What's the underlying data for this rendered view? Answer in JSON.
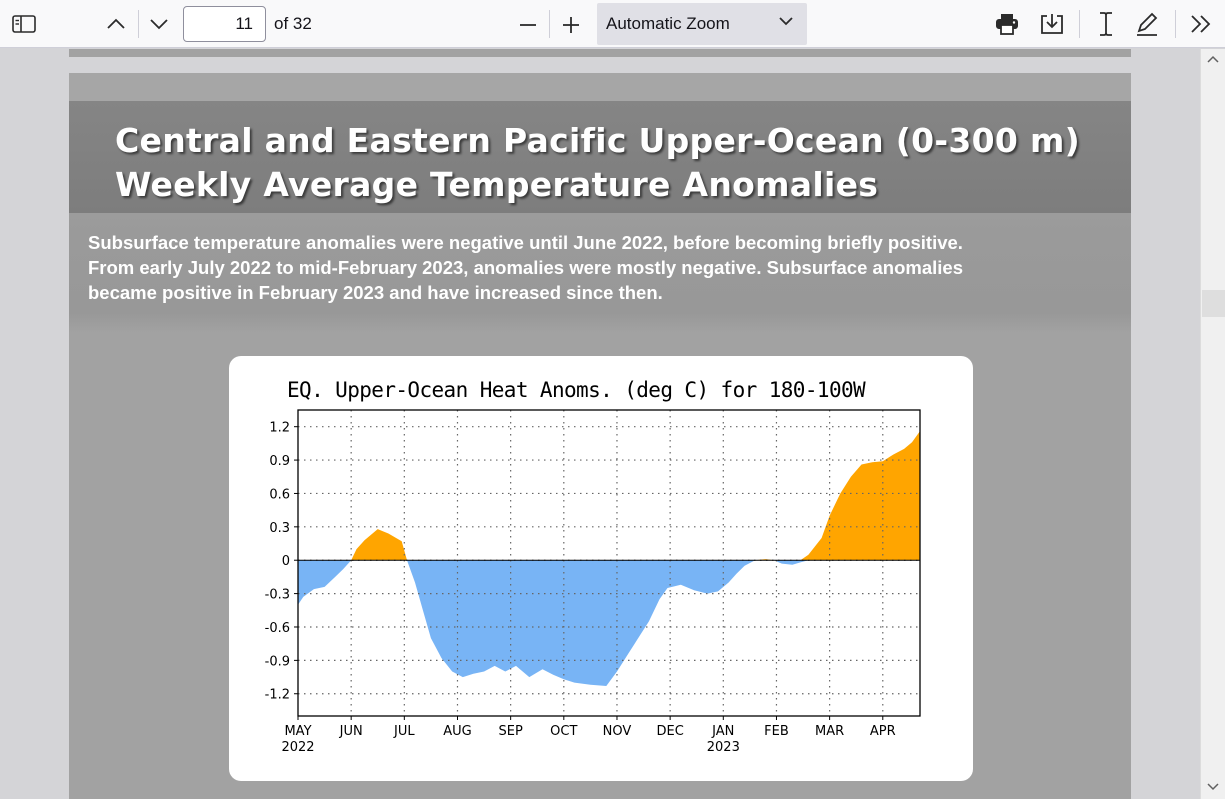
{
  "toolbar": {
    "sidebar_toggle_icon": "sidebar-toggle-icon",
    "page_number": "11",
    "page_total_label": "of 32",
    "zoom_label": "Automatic Zoom"
  },
  "slide": {
    "title_line1": "Central and Eastern Pacific Upper-Ocean (0-300 m)",
    "title_line2": "Weekly Average Temperature Anomalies",
    "desc_line1": "Subsurface temperature anomalies were negative until June 2022,  before becoming briefly positive.",
    "desc_line2": "From early July 2022 to mid-February 2023,  anomalies were mostly negative.   Subsurface anomalies",
    "desc_line3": "became positive in February 2023 and have increased since then."
  },
  "chart_data": {
    "type": "area",
    "title": "EQ. Upper-Ocean Heat Anoms. (deg C) for 180-100W",
    "xlabel": "",
    "ylabel": "",
    "ylim": [
      -1.4,
      1.35
    ],
    "yticks": [
      -1.2,
      -0.9,
      -0.6,
      -0.3,
      0,
      0.3,
      0.6,
      0.9,
      1.2
    ],
    "ytick_labels": [
      "-1.2",
      "-0.9",
      "-0.6",
      "-0.3",
      "0",
      "0.3",
      "0.6",
      "0.9",
      "1.2"
    ],
    "month_ticks": [
      "MAY",
      "JUN",
      "JUL",
      "AUG",
      "SEP",
      "OCT",
      "NOV",
      "DEC",
      "JAN",
      "FEB",
      "MAR",
      "APR"
    ],
    "year_labels": [
      {
        "month": "MAY",
        "year": "2022"
      },
      {
        "month": "JAN",
        "year": "2023"
      }
    ],
    "grid": true,
    "positive_color": "#ffa500",
    "negative_color": "#78b4f5",
    "x_unit": "months since 1 May 2022",
    "xlim": [
      0,
      11.7
    ],
    "x": [
      0,
      0.1,
      0.3,
      0.5,
      0.7,
      0.85,
      1.0,
      1.1,
      1.25,
      1.5,
      1.7,
      1.95,
      2.05,
      2.2,
      2.35,
      2.5,
      2.7,
      2.9,
      3.1,
      3.3,
      3.5,
      3.7,
      3.9,
      4.1,
      4.35,
      4.6,
      4.8,
      5.0,
      5.2,
      5.5,
      5.8,
      6.0,
      6.2,
      6.4,
      6.6,
      6.8,
      6.95,
      7.2,
      7.45,
      7.7,
      7.9,
      8.1,
      8.25,
      8.4,
      8.6,
      8.8,
      8.95,
      9.1,
      9.3,
      9.45,
      9.6,
      9.85,
      10.0,
      10.2,
      10.4,
      10.6,
      10.8,
      11.0,
      11.2,
      11.4,
      11.55,
      11.7
    ],
    "y": [
      -0.4,
      -0.33,
      -0.26,
      -0.24,
      -0.15,
      -0.08,
      0.0,
      0.1,
      0.18,
      0.28,
      0.24,
      0.17,
      0.0,
      -0.2,
      -0.45,
      -0.7,
      -0.88,
      -1.0,
      -1.05,
      -1.02,
      -1.0,
      -0.95,
      -1.0,
      -0.95,
      -1.05,
      -0.98,
      -1.03,
      -1.07,
      -1.1,
      -1.12,
      -1.13,
      -1.0,
      -0.85,
      -0.7,
      -0.55,
      -0.35,
      -0.25,
      -0.22,
      -0.27,
      -0.3,
      -0.28,
      -0.2,
      -0.12,
      -0.05,
      0.0,
      0.01,
      0.0,
      -0.03,
      -0.04,
      -0.02,
      0.05,
      0.2,
      0.4,
      0.6,
      0.75,
      0.86,
      0.88,
      0.89,
      0.95,
      1.0,
      1.06,
      1.16
    ]
  }
}
